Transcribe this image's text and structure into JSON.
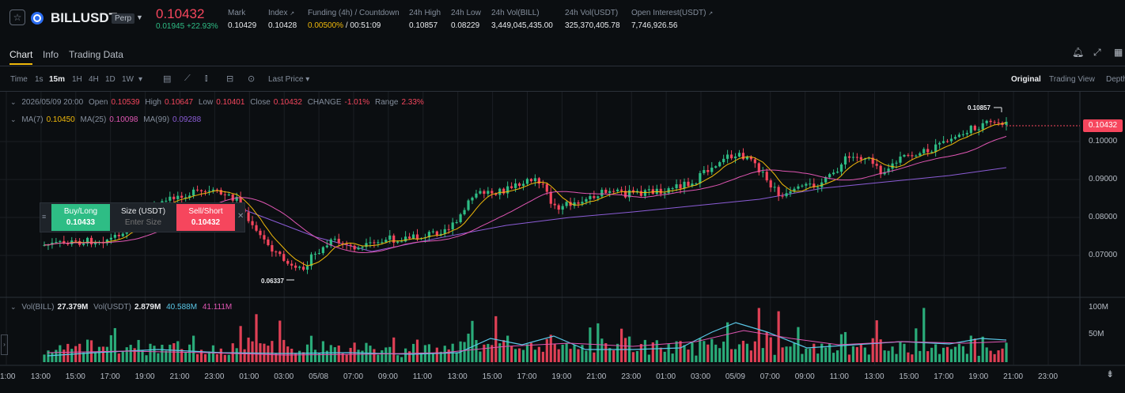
{
  "header": {
    "symbol": "BILLUSDT",
    "contract_type": "Perp",
    "last_price": "0.10432",
    "change_abs": "0.01945",
    "change_pct": "+22.93%",
    "stats": [
      {
        "label": "Mark",
        "value": "0.10429"
      },
      {
        "label": "Index",
        "value": "0.10428"
      },
      {
        "label": "Funding (4h) / Countdown",
        "value_rate": "0.00500%",
        "value_countdown": "/ 00:51:09"
      },
      {
        "label": "24h High",
        "value": "0.10857"
      },
      {
        "label": "24h Low",
        "value": "0.08229"
      },
      {
        "label": "24h Vol(BILL)",
        "value": "3,449,045,435.00"
      },
      {
        "label": "24h Vol(USDT)",
        "value": "325,370,405.78"
      },
      {
        "label": "Open Interest(USDT)",
        "value": "7,746,926.56"
      }
    ]
  },
  "tabs": [
    "Chart",
    "Info",
    "Trading Data"
  ],
  "toolbar": {
    "time_label": "Time",
    "intervals": [
      "1s",
      "15m",
      "1H",
      "4H",
      "1D",
      "1W"
    ],
    "active_interval": "15m",
    "price_type": "Last Price",
    "views": [
      "Original",
      "Trading View",
      "Depth"
    ],
    "active_view": "Original"
  },
  "ohlc_legend": {
    "date": "2026/05/09 20:00",
    "open_label": "Open",
    "open": "0.10539",
    "high_label": "High",
    "high": "0.10647",
    "low_label": "Low",
    "low": "0.10401",
    "close_label": "Close",
    "close": "0.10432",
    "change_label": "CHANGE",
    "change": "-1.01%",
    "range_label": "Range",
    "range": "2.33%"
  },
  "ma_legend": {
    "ma7_label": "MA(7)",
    "ma7": "0.10450",
    "ma25_label": "MA(25)",
    "ma25": "0.10098",
    "ma99_label": "MA(99)",
    "ma99": "0.09288"
  },
  "vol_legend": {
    "vol_bill_label": "Vol(BILL)",
    "vol_bill": "27.379M",
    "vol_usdt_label": "Vol(USDT)",
    "vol_usdt": "2.879M",
    "vol_ma1": "40.588M",
    "vol_ma2": "41.111M"
  },
  "trade_widget": {
    "buy_label": "Buy/Long",
    "buy_price": "0.10433",
    "size_label": "Size (USDT)",
    "size_placeholder": "Enter Size",
    "sell_label": "Sell/Short",
    "sell_price": "0.10432"
  },
  "price_axis": [
    "0.10000",
    "0.09000",
    "0.08000",
    "0.07000"
  ],
  "volume_axis": [
    "100M",
    "50M"
  ],
  "time_axis": [
    "1:00",
    "13:00",
    "15:00",
    "17:00",
    "19:00",
    "21:00",
    "23:00",
    "01:00",
    "03:00",
    "05/08",
    "07:00",
    "09:00",
    "11:00",
    "13:00",
    "15:00",
    "17:00",
    "19:00",
    "21:00",
    "23:00",
    "01:00",
    "03:00",
    "05/09",
    "07:00",
    "09:00",
    "11:00",
    "13:00",
    "15:00",
    "17:00",
    "19:00",
    "21:00",
    "23:00"
  ],
  "current_price_badge": "0.10432",
  "high_marker": "0.10857",
  "low_marker": "0.06337",
  "colors": {
    "up": "#2ebd85",
    "down": "#f6465d",
    "ma7": "#f0b90b",
    "ma25": "#e056b3",
    "ma99": "#8b5cd6",
    "accent": "#f0b90b"
  },
  "icons": [
    "star-icon",
    "coin-icon",
    "bell-icon",
    "expand-icon",
    "grid-icon",
    "indicator-icon",
    "candle-type-icon",
    "draw-icon",
    "settings-icon",
    "camera-icon",
    "scroll-end-icon"
  ]
}
